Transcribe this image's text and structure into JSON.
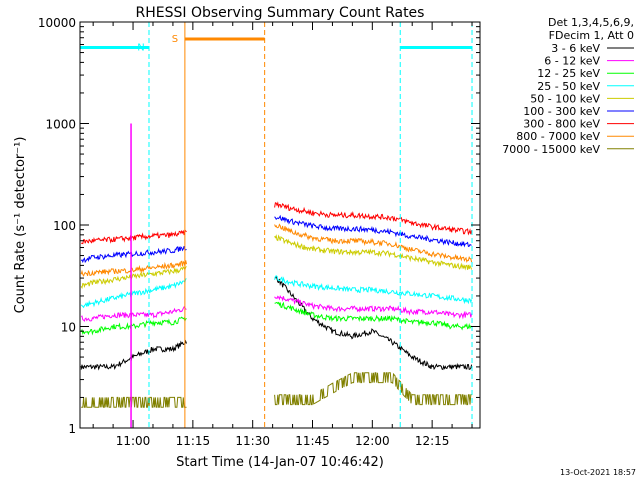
{
  "chart_data": {
    "type": "line",
    "title": "RHESSI Observing Summary Count Rates",
    "xlabel": "Start Time (14-Jan-07 10:46:42)",
    "ylabel": "Count Rate (s⁻¹ detector⁻¹)",
    "yscale": "log",
    "ylim": [
      1,
      10000
    ],
    "xlim": [
      "10:46:42",
      "12:27:00"
    ],
    "x_ticks": [
      "11:00",
      "11:15",
      "11:30",
      "11:45",
      "12:00",
      "12:15"
    ],
    "y_ticks": [
      "1",
      "10",
      "100",
      "1000",
      "10000"
    ],
    "grid": false,
    "legend_position": "right",
    "legend_header": [
      "Det 1,3,4,5,6,9,",
      "FDecim 1, Att 0"
    ],
    "footer_date": "13-Oct-2021 18:57",
    "x": [
      "10:47",
      "10:50",
      "10:55",
      "11:00",
      "11:05",
      "11:10",
      "11:13",
      "11:36",
      "11:40",
      "11:45",
      "11:50",
      "11:55",
      "12:00",
      "12:05",
      "12:10",
      "12:15",
      "12:20",
      "12:25"
    ],
    "series": [
      {
        "name": "3 - 6 keV",
        "color": "#000000",
        "values": [
          4,
          4,
          4,
          5,
          6,
          6,
          7,
          30,
          20,
          12,
          9,
          8,
          9,
          7,
          5,
          4,
          4,
          4
        ]
      },
      {
        "name": "6 - 12 keV",
        "color": "#ff00ff",
        "values": [
          12,
          12,
          13,
          13,
          13,
          14,
          15,
          20,
          18,
          16,
          15,
          15,
          15,
          15,
          14,
          14,
          13,
          13
        ]
      },
      {
        "name": "12 - 25 keV",
        "color": "#00ff00",
        "values": [
          9,
          9,
          10,
          10,
          11,
          11,
          12,
          17,
          15,
          13,
          12,
          12,
          12,
          12,
          11,
          11,
          10,
          10
        ]
      },
      {
        "name": "25 - 50 keV",
        "color": "#00ffff",
        "values": [
          16,
          17,
          19,
          21,
          23,
          25,
          28,
          30,
          27,
          25,
          24,
          23,
          23,
          22,
          21,
          20,
          19,
          18
        ]
      },
      {
        "name": "50 - 100 keV",
        "color": "#cccc00",
        "values": [
          25,
          27,
          29,
          31,
          33,
          35,
          37,
          75,
          65,
          58,
          55,
          54,
          54,
          52,
          47,
          43,
          40,
          38
        ]
      },
      {
        "name": "100 - 300 keV",
        "color": "#0000ff",
        "values": [
          45,
          48,
          50,
          52,
          54,
          56,
          60,
          120,
          108,
          98,
          92,
          92,
          90,
          85,
          77,
          72,
          67,
          63
        ]
      },
      {
        "name": "300 - 800 keV",
        "color": "#ff0000",
        "values": [
          68,
          70,
          72,
          75,
          78,
          80,
          84,
          160,
          145,
          132,
          125,
          125,
          122,
          118,
          105,
          96,
          90,
          85
        ]
      },
      {
        "name": "800 - 7000 keV",
        "color": "#ff8800",
        "values": [
          33,
          34,
          35,
          36,
          38,
          40,
          42,
          100,
          85,
          75,
          70,
          70,
          68,
          65,
          57,
          52,
          48,
          45
        ]
      },
      {
        "name": "7000 - 15000 keV",
        "color": "#808000",
        "values": [
          1.6,
          1.6,
          1.6,
          1.6,
          1.6,
          1.6,
          1.6,
          1.7,
          1.7,
          1.7,
          2.2,
          2.8,
          2.8,
          2.8,
          1.7,
          1.7,
          1.7,
          1.7
        ]
      }
    ],
    "annotations": [
      {
        "label": "N",
        "color": "#00ffff",
        "x_start": "10:46:42",
        "x_end": "11:04",
        "level": 5600
      },
      {
        "label": "S",
        "color": "#ff8800",
        "x_start": "11:13",
        "x_end": "11:33",
        "level": 6800
      },
      {
        "label": "",
        "color": "#00ffff",
        "x_start": "12:07",
        "x_end": "12:25",
        "level": 5600
      }
    ],
    "spikes": [
      {
        "x": "10:59:30",
        "level": 1000,
        "color": "#ff00ff"
      }
    ]
  }
}
